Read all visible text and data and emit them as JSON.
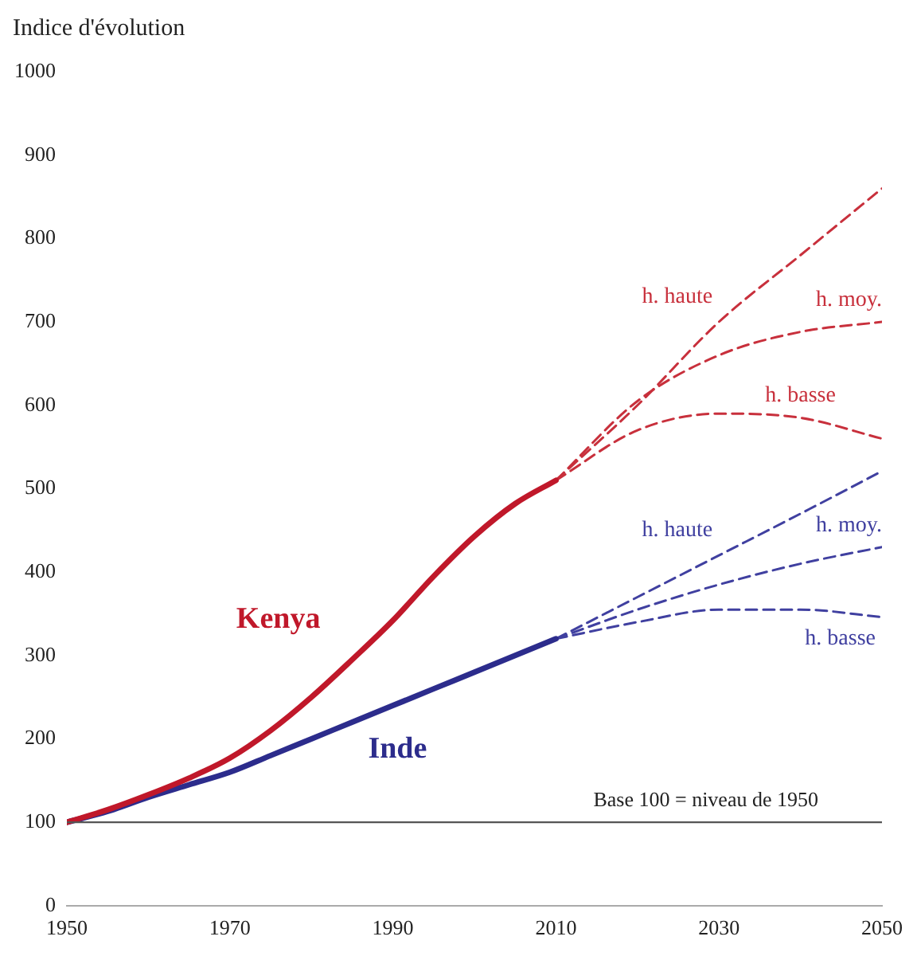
{
  "chart_data": {
    "type": "line",
    "ylabel": "Indice d'évolution",
    "xlim": [
      1950,
      2050
    ],
    "xticks": [
      1950,
      1970,
      1990,
      2010,
      2030,
      2050
    ],
    "ylim": [
      0,
      1000
    ],
    "yticks": [
      0,
      100,
      200,
      300,
      400,
      500,
      600,
      700,
      800,
      900,
      1000
    ],
    "grid": false,
    "legend": false,
    "marker": "none",
    "series": [
      {
        "name": "Kenya",
        "color": "#c0182a",
        "line_style": "solid",
        "x": [
          1950,
          1955,
          1960,
          1965,
          1970,
          1975,
          1980,
          1985,
          1990,
          1995,
          2000,
          2005,
          2010
        ],
        "values": [
          100,
          115,
          133,
          153,
          177,
          210,
          250,
          295,
          342,
          395,
          443,
          482,
          510
        ]
      },
      {
        "name": "Inde",
        "color": "#2c2c8c",
        "line_style": "solid",
        "x": [
          1950,
          1955,
          1960,
          1965,
          1970,
          1975,
          1980,
          1985,
          1990,
          1995,
          2000,
          2005,
          2010
        ],
        "values": [
          100,
          113,
          130,
          145,
          160,
          180,
          200,
          220,
          240,
          260,
          280,
          300,
          320
        ]
      },
      {
        "name": "h. haute",
        "color": "#c8303c",
        "line_style": "dashed",
        "x": [
          2010,
          2020,
          2030,
          2040,
          2050
        ],
        "values": [
          510,
          600,
          700,
          780,
          860
        ]
      },
      {
        "name": "h. moy.",
        "color": "#c8303c",
        "line_style": "dashed",
        "x": [
          2010,
          2020,
          2030,
          2040,
          2050
        ],
        "values": [
          510,
          605,
          660,
          688,
          700
        ]
      },
      {
        "name": "h. basse",
        "color": "#c8303c",
        "line_style": "dashed",
        "x": [
          2010,
          2020,
          2030,
          2040,
          2050
        ],
        "values": [
          510,
          570,
          590,
          585,
          560
        ]
      },
      {
        "name": "h. haute",
        "color": "#4040a0",
        "line_style": "dashed",
        "x": [
          2010,
          2020,
          2030,
          2040,
          2050
        ],
        "values": [
          320,
          370,
          420,
          470,
          521
        ]
      },
      {
        "name": "h. moy.",
        "color": "#4040a0",
        "line_style": "dashed",
        "x": [
          2010,
          2020,
          2030,
          2040,
          2050
        ],
        "values": [
          320,
          355,
          385,
          410,
          430
        ]
      },
      {
        "name": "h. basse",
        "color": "#4040a0",
        "line_style": "dashed",
        "x": [
          2010,
          2020,
          2030,
          2040,
          2050
        ],
        "values": [
          320,
          340,
          355,
          355,
          346
        ]
      }
    ],
    "ref_lines": [
      {
        "axis": "y",
        "value": 100,
        "label": "Base 100 = niveau de 1950",
        "color": "#555555",
        "line_style": "solid"
      }
    ]
  }
}
